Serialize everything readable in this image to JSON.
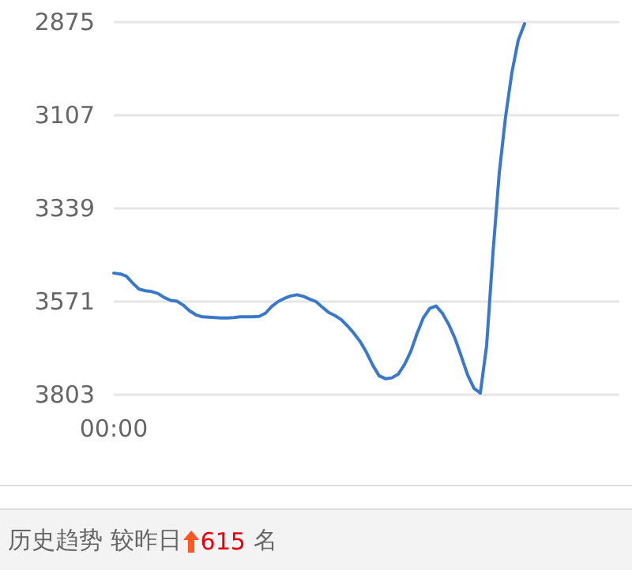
{
  "chart_data": {
    "type": "line",
    "categories": [
      "00:00",
      null,
      null,
      null,
      null,
      null,
      null,
      null,
      null,
      null,
      null,
      null,
      null,
      null,
      null,
      null,
      null,
      null,
      null,
      null,
      null,
      null,
      null,
      null,
      null,
      null,
      null,
      null,
      null,
      null,
      null,
      null,
      null,
      null,
      null,
      null,
      null,
      null,
      null,
      null,
      null,
      null,
      null,
      null,
      null,
      null,
      null,
      null,
      null,
      null,
      null,
      null,
      null,
      null,
      null,
      null,
      null,
      null,
      null,
      null,
      null,
      null,
      null,
      null,
      null,
      null,
      null,
      null,
      null,
      null,
      null,
      null,
      null,
      null,
      null,
      null,
      null,
      null,
      null,
      null,
      null
    ],
    "series": [
      {
        "color": "#3a78c9",
        "values": [
          3500,
          3502,
          3508,
          3525,
          3540,
          3544,
          3546,
          3551,
          3561,
          3568,
          3570,
          3580,
          3594,
          3604,
          3609,
          3610,
          3611,
          3612,
          3612,
          3611,
          3609,
          3609,
          3609,
          3608,
          3600,
          3583,
          3571,
          3563,
          3557,
          3554,
          3558,
          3565,
          3571,
          3585,
          3598,
          3606,
          3616,
          3632,
          3650,
          3671,
          3698,
          3730,
          3756,
          3763,
          3761,
          3752,
          3728,
          3695,
          3650,
          3611,
          3588,
          3582,
          3600,
          3628,
          3663,
          3708,
          3754,
          3787,
          3799,
          3680,
          3450,
          3250,
          3110,
          3000,
          2920,
          2879,
          null,
          null,
          null,
          null,
          null,
          null,
          null,
          null,
          null,
          null,
          null,
          null,
          null,
          null,
          null
        ]
      }
    ],
    "ylim": [
      3803,
      2875
    ],
    "yticks": [
      2875,
      3107,
      3339,
      3571,
      3803
    ],
    "grid": "y",
    "marker": "none",
    "line_style": "solid",
    "annotations": [
      "历史趋势 较昨日",
      "615",
      "名"
    ]
  }
}
